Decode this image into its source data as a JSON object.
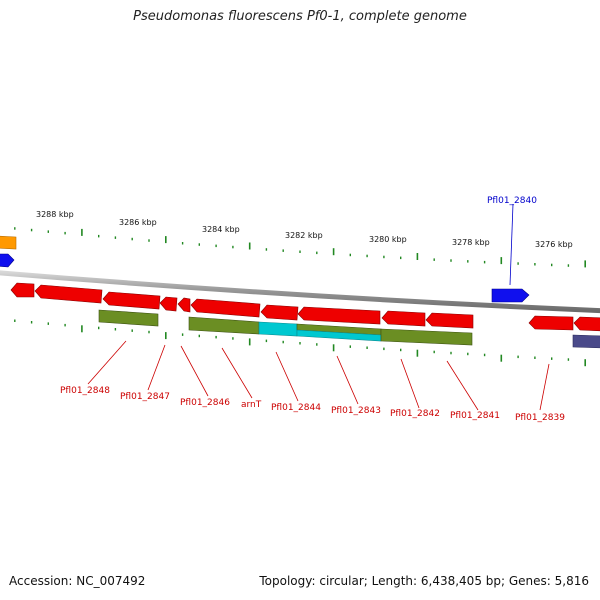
{
  "title": "Pseudomonas fluorescens Pf0-1, complete genome",
  "footer": {
    "accession": "Accession: NC_007492",
    "summary": "Topology: circular; Length: 6,438,405 bp; Genes: 5,816"
  },
  "colors": {
    "forward_gene": "#1010ee",
    "reverse_gene": "#ee0000",
    "cds_feature": "#6b8e23",
    "highlight_feature": "#00c8d0",
    "other_feature": "#4a4a8a",
    "orange_feature": "#ff9900",
    "backbone": "#888888",
    "ticks": "#228822",
    "label_reverse": "#cc0000",
    "label_forward": "#0000cc"
  },
  "ruler": {
    "labels": [
      "3288 kbp",
      "3286 kbp",
      "3284 kbp",
      "3282 kbp",
      "3280 kbp",
      "3278 kbp",
      "3276 kbp"
    ]
  },
  "genes": [
    {
      "name": "Pfl01_2840",
      "strand": "forward",
      "label_color": "blue"
    },
    {
      "name": "Pfl01_2848",
      "strand": "reverse"
    },
    {
      "name": "Pfl01_2847",
      "strand": "reverse"
    },
    {
      "name": "Pfl01_2846",
      "strand": "reverse"
    },
    {
      "name": "arnT",
      "strand": "reverse"
    },
    {
      "name": "Pfl01_2844",
      "strand": "reverse"
    },
    {
      "name": "Pfl01_2843",
      "strand": "reverse"
    },
    {
      "name": "Pfl01_2842",
      "strand": "reverse"
    },
    {
      "name": "Pfl01_2841",
      "strand": "reverse"
    },
    {
      "name": "Pfl01_2839",
      "strand": "reverse"
    }
  ]
}
